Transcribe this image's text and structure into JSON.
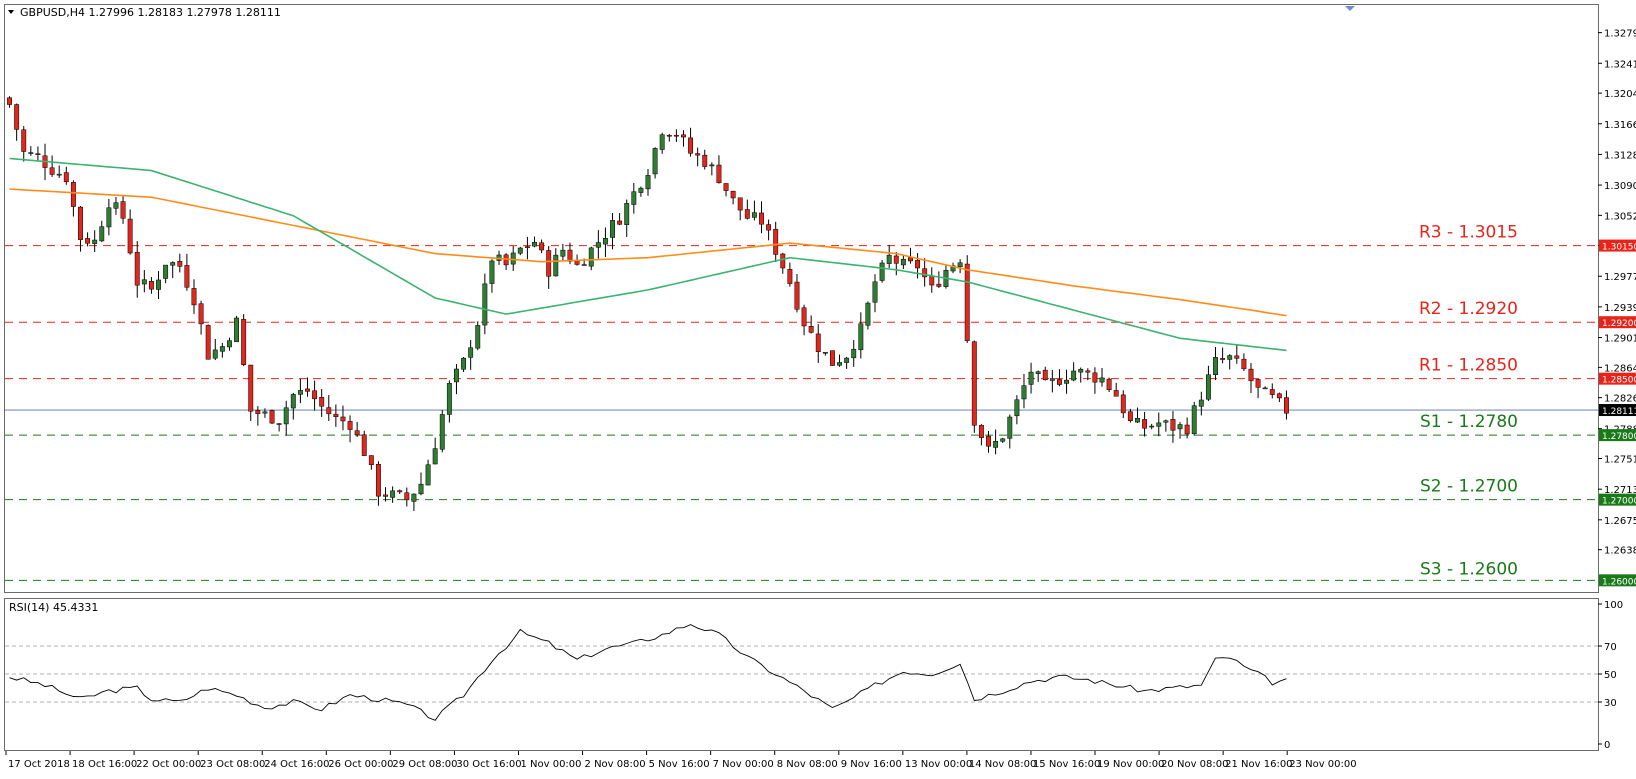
{
  "header": {
    "symbol_line": "GBPUSD,H4  1.27996 1.28183 1.27978 1.28111",
    "rsi_line": "RSI(14) 45.4331"
  },
  "colors": {
    "bull": "#2f7d32",
    "bear": "#e1261c",
    "ma_fast": "#3cb371",
    "ma_slow": "#ff8c1a",
    "resistance": "#e8241a",
    "support": "#1a7a1a",
    "current": "#5a6fa3",
    "rsi": "#000000"
  },
  "chart_data": [
    {
      "type": "candlestick",
      "symbol": "GBPUSD",
      "timeframe": "H4",
      "ylim": [
        1.2588,
        1.3312
      ],
      "y_ticks": [
        "1.32790",
        "1.32410",
        "1.32040",
        "1.31660",
        "1.31280",
        "1.30900",
        "1.30525",
        "1.30150",
        "1.29770",
        "1.29390",
        "1.29010",
        "1.28640",
        "1.28265",
        "1.27880",
        "1.27510",
        "1.27130",
        "1.26750",
        "1.26380"
      ],
      "x_labels": [
        "17 Oct 2018",
        "18 Oct 16:00",
        "22 Oct 00:00",
        "23 Oct 08:00",
        "24 Oct 16:00",
        "26 Oct 00:00",
        "29 Oct 08:00",
        "30 Oct 16:00",
        "1 Nov 00:00",
        "2 Nov 08:00",
        "5 Nov 16:00",
        "7 Nov 00:00",
        "8 Nov 08:00",
        "9 Nov 16:00",
        "13 Nov 00:00",
        "14 Nov 08:00",
        "15 Nov 16:00",
        "19 Nov 00:00",
        "20 Nov 08:00",
        "21 Nov 16:00",
        "23 Nov 00:00"
      ],
      "levels": [
        {
          "name": "R3",
          "label": "R3 - 1.3015",
          "value": 1.3015,
          "tag": "1.30150",
          "kind": "resistance"
        },
        {
          "name": "R2",
          "label": "R2 - 1.2920",
          "value": 1.292,
          "tag": "1.29200",
          "kind": "resistance"
        },
        {
          "name": "R1",
          "label": "R1 - 1.2850",
          "value": 1.285,
          "tag": "1.28500",
          "kind": "resistance"
        },
        {
          "name": "S1",
          "label": "S1 - 1.2780",
          "value": 1.278,
          "tag": "1.27800",
          "kind": "support"
        },
        {
          "name": "S2",
          "label": "S2 - 1.2700",
          "value": 1.27,
          "tag": "1.27000",
          "kind": "support"
        },
        {
          "name": "S3",
          "label": "S3 - 1.2600",
          "value": 1.26,
          "tag": "1.26000",
          "kind": "support"
        }
      ],
      "current_price": 1.28111,
      "current_tag": "1.28111",
      "waypoints": [
        [
          0,
          1.319
        ],
        [
          2,
          1.313
        ],
        [
          4,
          1.3125
        ],
        [
          6,
          1.311
        ],
        [
          8,
          1.31
        ],
        [
          10,
          1.3025
        ],
        [
          12,
          1.302
        ],
        [
          14,
          1.307
        ],
        [
          16,
          1.305
        ],
        [
          18,
          1.297
        ],
        [
          20,
          1.296
        ],
        [
          22,
          1.2995
        ],
        [
          24,
          1.299
        ],
        [
          26,
          1.295
        ],
        [
          28,
          1.288
        ],
        [
          30,
          1.289
        ],
        [
          32,
          1.292
        ],
        [
          34,
          1.281
        ],
        [
          36,
          1.2805
        ],
        [
          38,
          1.28
        ],
        [
          40,
          1.283
        ],
        [
          42,
          1.2835
        ],
        [
          44,
          1.2815
        ],
        [
          46,
          1.28
        ],
        [
          48,
          1.2795
        ],
        [
          50,
          1.276
        ],
        [
          52,
          1.271
        ],
        [
          54,
          1.2705
        ],
        [
          56,
          1.27
        ],
        [
          58,
          1.272
        ],
        [
          60,
          1.277
        ],
        [
          62,
          1.284
        ],
        [
          64,
          1.287
        ],
        [
          66,
          1.292
        ],
        [
          68,
          1.3
        ],
        [
          70,
          1.299
        ],
        [
          72,
          1.301
        ],
        [
          74,
          1.302
        ],
        [
          76,
          1.2985
        ],
        [
          78,
          1.301
        ],
        [
          80,
          1.299
        ],
        [
          82,
          1.301
        ],
        [
          84,
          1.303
        ],
        [
          86,
          1.305
        ],
        [
          88,
          1.308
        ],
        [
          90,
          1.311
        ],
        [
          92,
          1.316
        ],
        [
          94,
          1.3155
        ],
        [
          96,
          1.313
        ],
        [
          98,
          1.312
        ],
        [
          100,
          1.31
        ],
        [
          102,
          1.307
        ],
        [
          104,
          1.305
        ],
        [
          106,
          1.3045
        ],
        [
          108,
          1.301
        ],
        [
          110,
          1.297
        ],
        [
          112,
          1.292
        ],
        [
          114,
          1.289
        ],
        [
          116,
          1.287
        ],
        [
          118,
          1.288
        ],
        [
          120,
          1.291
        ],
        [
          122,
          1.297
        ],
        [
          124,
          1.3
        ],
        [
          126,
          1.299
        ],
        [
          128,
          1.299
        ],
        [
          130,
          1.296
        ],
        [
          132,
          1.2985
        ],
        [
          134,
          1.3
        ],
        [
          136,
          1.28
        ],
        [
          138,
          1.276
        ],
        [
          140,
          1.278
        ],
        [
          142,
          1.282
        ],
        [
          144,
          1.286
        ],
        [
          146,
          1.284
        ],
        [
          148,
          1.285
        ],
        [
          150,
          1.286
        ],
        [
          152,
          1.2855
        ],
        [
          154,
          1.285
        ],
        [
          156,
          1.283
        ],
        [
          158,
          1.2795
        ],
        [
          160,
          1.279
        ],
        [
          162,
          1.2795
        ],
        [
          164,
          1.279
        ],
        [
          166,
          1.279
        ],
        [
          168,
          1.283
        ],
        [
          170,
          1.287
        ],
        [
          172,
          1.2875
        ],
        [
          174,
          1.286
        ],
        [
          176,
          1.2835
        ],
        [
          178,
          1.2825
        ],
        [
          180,
          1.2811
        ]
      ],
      "ma_fast_waypoints": [
        [
          0,
          1.3123
        ],
        [
          20,
          1.3108
        ],
        [
          40,
          1.3052
        ],
        [
          60,
          1.295
        ],
        [
          70,
          1.293
        ],
        [
          90,
          1.296
        ],
        [
          110,
          1.3
        ],
        [
          125,
          1.2985
        ],
        [
          135,
          1.297
        ],
        [
          150,
          1.2935
        ],
        [
          165,
          1.29
        ],
        [
          175,
          1.289
        ],
        [
          180,
          1.2885
        ]
      ],
      "ma_slow_waypoints": [
        [
          0,
          1.3085
        ],
        [
          20,
          1.3075
        ],
        [
          40,
          1.304
        ],
        [
          60,
          1.3005
        ],
        [
          75,
          1.2995
        ],
        [
          90,
          1.3
        ],
        [
          110,
          1.3018
        ],
        [
          125,
          1.3005
        ],
        [
          135,
          1.2985
        ],
        [
          150,
          1.2965
        ],
        [
          165,
          1.2948
        ],
        [
          175,
          1.2935
        ],
        [
          180,
          1.2928
        ]
      ]
    },
    {
      "type": "line",
      "name": "RSI(14)",
      "ylim": [
        0,
        100
      ],
      "y_ticks": [
        "100",
        "70",
        "50",
        "30",
        "0"
      ],
      "levels": [
        70,
        50,
        30
      ],
      "waypoints": [
        [
          0,
          48
        ],
        [
          5,
          42
        ],
        [
          10,
          32
        ],
        [
          14,
          38
        ],
        [
          18,
          40
        ],
        [
          20,
          32
        ],
        [
          24,
          30
        ],
        [
          28,
          40
        ],
        [
          32,
          35
        ],
        [
          36,
          26
        ],
        [
          40,
          30
        ],
        [
          44,
          25
        ],
        [
          48,
          35
        ],
        [
          52,
          32
        ],
        [
          56,
          28
        ],
        [
          60,
          18
        ],
        [
          64,
          35
        ],
        [
          68,
          60
        ],
        [
          72,
          80
        ],
        [
          76,
          72
        ],
        [
          80,
          60
        ],
        [
          84,
          68
        ],
        [
          88,
          72
        ],
        [
          92,
          78
        ],
        [
          96,
          86
        ],
        [
          100,
          78
        ],
        [
          104,
          62
        ],
        [
          108,
          50
        ],
        [
          112,
          38
        ],
        [
          116,
          25
        ],
        [
          118,
          30
        ],
        [
          122,
          42
        ],
        [
          126,
          52
        ],
        [
          130,
          50
        ],
        [
          134,
          58
        ],
        [
          136,
          32
        ],
        [
          140,
          38
        ],
        [
          144,
          45
        ],
        [
          148,
          48
        ],
        [
          152,
          46
        ],
        [
          156,
          42
        ],
        [
          160,
          38
        ],
        [
          164,
          40
        ],
        [
          168,
          42
        ],
        [
          170,
          60
        ],
        [
          172,
          62
        ],
        [
          174,
          55
        ],
        [
          176,
          50
        ],
        [
          178,
          44
        ],
        [
          180,
          45
        ]
      ]
    }
  ]
}
